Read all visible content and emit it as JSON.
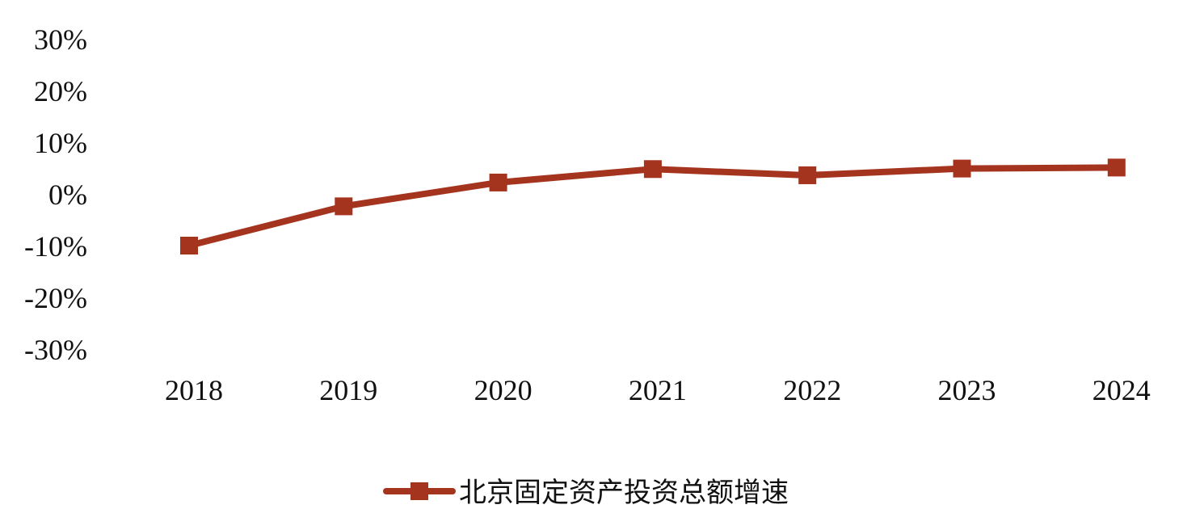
{
  "chart_data": {
    "type": "line",
    "title": "",
    "xlabel": "",
    "ylabel": "",
    "categories": [
      "2018",
      "2019",
      "2020",
      "2021",
      "2022",
      "2023",
      "2024"
    ],
    "series": [
      {
        "name": "北京固定资产投资总额增速",
        "color": "#A5341F",
        "marker": "square",
        "values": [
          -10.0,
          -2.4,
          2.2,
          4.8,
          3.6,
          4.9,
          5.1
        ]
      }
    ],
    "ylim": [
      -30,
      30
    ],
    "yticks": [
      30,
      20,
      10,
      0,
      -10,
      -20,
      -30
    ],
    "ytick_labels": [
      "30%",
      "20%",
      "10%",
      "0%",
      "-10%",
      "-20%",
      "-30%"
    ],
    "grid": false,
    "legend_position": "bottom-center"
  }
}
